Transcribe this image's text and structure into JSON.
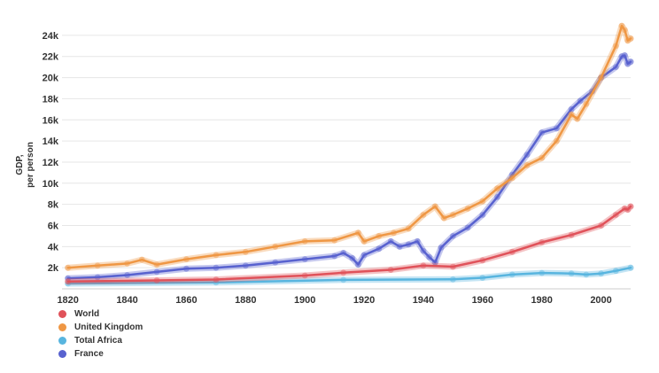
{
  "chart_data": {
    "type": "line",
    "title": "",
    "xlabel": "",
    "ylabel": [
      "GDP,",
      "per person"
    ],
    "xlim": [
      1818,
      2010
    ],
    "ylim": [
      0,
      25500
    ],
    "x_ticks": [
      1820,
      1840,
      1860,
      1880,
      1900,
      1920,
      1940,
      1960,
      1980,
      2000
    ],
    "x_tick_labels": [
      "1820",
      "1840",
      "1860",
      "1880",
      "1900",
      "1920",
      "1940",
      "1960",
      "1980",
      "2000"
    ],
    "y_ticks": [
      2000,
      4000,
      6000,
      8000,
      10000,
      12000,
      14000,
      16000,
      18000,
      20000,
      22000,
      24000
    ],
    "y_tick_labels": [
      "2k",
      "4k",
      "6k",
      "8k",
      "10k",
      "12k",
      "14k",
      "16k",
      "18k",
      "20k",
      "22k",
      "24k"
    ],
    "grid": "horizontal",
    "legend_position": "bottom-left",
    "series": [
      {
        "name": "World",
        "color": "#e0525a",
        "points": [
          [
            1820,
            700
          ],
          [
            1850,
            800
          ],
          [
            1870,
            880
          ],
          [
            1900,
            1260
          ],
          [
            1913,
            1530
          ],
          [
            1929,
            1800
          ],
          [
            1940,
            2200
          ],
          [
            1950,
            2100
          ],
          [
            1960,
            2700
          ],
          [
            1970,
            3500
          ],
          [
            1980,
            4400
          ],
          [
            1990,
            5100
          ],
          [
            2000,
            6000
          ],
          [
            2005,
            7000
          ],
          [
            2008,
            7600
          ],
          [
            2009,
            7500
          ],
          [
            2010,
            7800
          ]
        ]
      },
      {
        "name": "United Kingdom",
        "color": "#ef9744",
        "points": [
          [
            1820,
            2000
          ],
          [
            1830,
            2200
          ],
          [
            1840,
            2400
          ],
          [
            1845,
            2750
          ],
          [
            1850,
            2300
          ],
          [
            1860,
            2800
          ],
          [
            1870,
            3200
          ],
          [
            1880,
            3500
          ],
          [
            1890,
            4000
          ],
          [
            1900,
            4500
          ],
          [
            1910,
            4600
          ],
          [
            1918,
            5300
          ],
          [
            1920,
            4500
          ],
          [
            1925,
            5000
          ],
          [
            1930,
            5300
          ],
          [
            1935,
            5700
          ],
          [
            1940,
            7000
          ],
          [
            1944,
            7800
          ],
          [
            1947,
            6700
          ],
          [
            1950,
            7000
          ],
          [
            1955,
            7600
          ],
          [
            1960,
            8300
          ],
          [
            1965,
            9500
          ],
          [
            1970,
            10500
          ],
          [
            1975,
            11700
          ],
          [
            1980,
            12400
          ],
          [
            1985,
            14000
          ],
          [
            1990,
            16500
          ],
          [
            1992,
            16100
          ],
          [
            1995,
            17500
          ],
          [
            2000,
            20000
          ],
          [
            2005,
            23000
          ],
          [
            2007,
            24900
          ],
          [
            2008,
            24500
          ],
          [
            2009,
            23500
          ],
          [
            2010,
            23700
          ]
        ]
      },
      {
        "name": "Total Africa",
        "color": "#58b5df",
        "points": [
          [
            1820,
            500
          ],
          [
            1870,
            600
          ],
          [
            1913,
            850
          ],
          [
            1950,
            900
          ],
          [
            1960,
            1050
          ],
          [
            1970,
            1350
          ],
          [
            1980,
            1500
          ],
          [
            1990,
            1450
          ],
          [
            1995,
            1350
          ],
          [
            2000,
            1450
          ],
          [
            2005,
            1700
          ],
          [
            2010,
            2000
          ]
        ]
      },
      {
        "name": "France",
        "color": "#5862cf",
        "points": [
          [
            1820,
            1000
          ],
          [
            1830,
            1100
          ],
          [
            1840,
            1300
          ],
          [
            1850,
            1600
          ],
          [
            1860,
            1900
          ],
          [
            1870,
            2000
          ],
          [
            1880,
            2200
          ],
          [
            1890,
            2500
          ],
          [
            1900,
            2800
          ],
          [
            1910,
            3100
          ],
          [
            1913,
            3400
          ],
          [
            1916,
            2900
          ],
          [
            1918,
            2300
          ],
          [
            1920,
            3200
          ],
          [
            1925,
            3800
          ],
          [
            1929,
            4500
          ],
          [
            1932,
            4000
          ],
          [
            1935,
            4200
          ],
          [
            1938,
            4500
          ],
          [
            1940,
            3600
          ],
          [
            1942,
            3000
          ],
          [
            1944,
            2500
          ],
          [
            1946,
            3900
          ],
          [
            1950,
            5000
          ],
          [
            1955,
            5800
          ],
          [
            1960,
            7000
          ],
          [
            1965,
            8700
          ],
          [
            1970,
            10800
          ],
          [
            1975,
            12700
          ],
          [
            1980,
            14800
          ],
          [
            1985,
            15200
          ],
          [
            1990,
            17000
          ],
          [
            1993,
            17800
          ],
          [
            1997,
            18700
          ],
          [
            2000,
            20000
          ],
          [
            2005,
            21000
          ],
          [
            2007,
            22000
          ],
          [
            2008,
            22100
          ],
          [
            2009,
            21300
          ],
          [
            2010,
            21500
          ]
        ]
      }
    ]
  }
}
